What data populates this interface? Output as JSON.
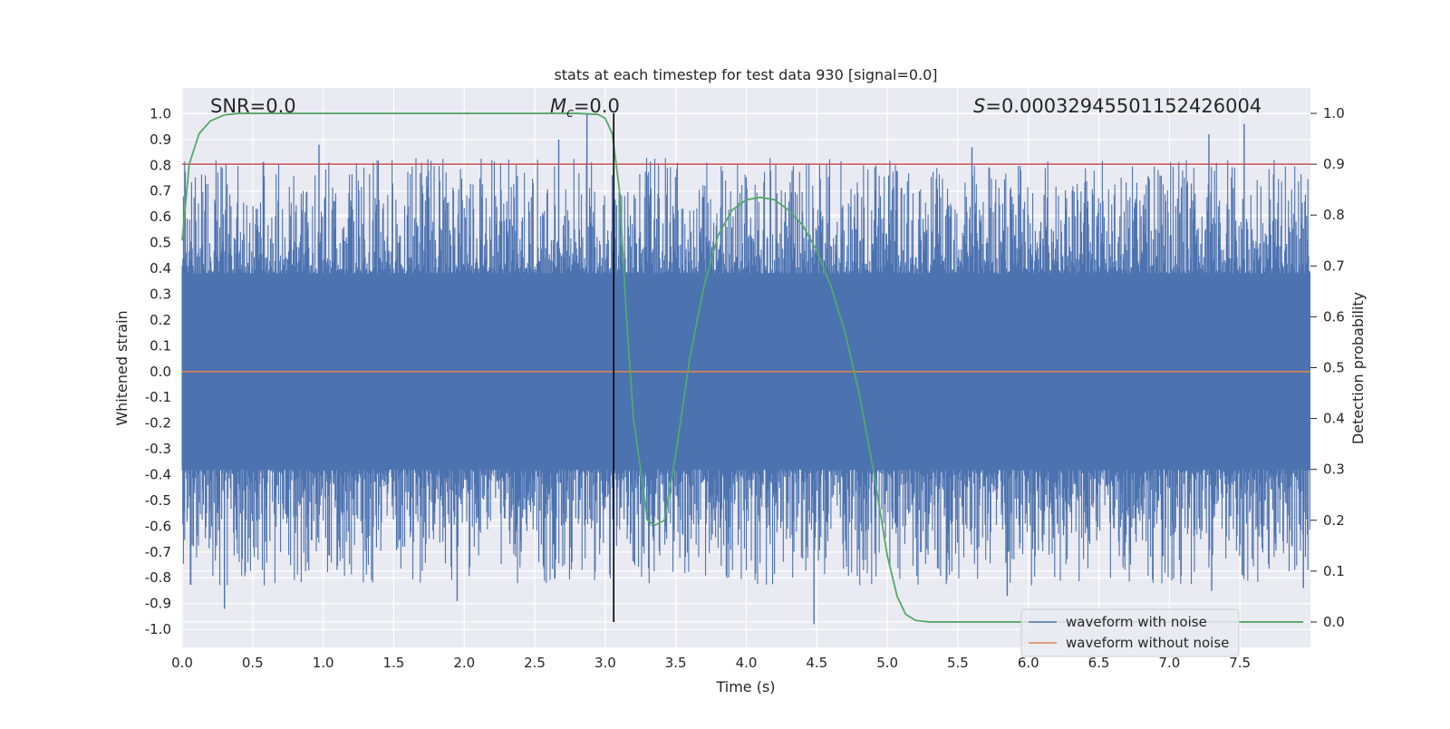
{
  "chart_data": {
    "type": "line",
    "title": "stats at each timestep for test data 930 [signal=0.0]",
    "xlabel": "Time (s)",
    "ylabel": "Whitened strain",
    "y2label": "Detection probability",
    "xlim": [
      0.0,
      8.0
    ],
    "ylim": [
      -1.07,
      1.1
    ],
    "y2lim": [
      -0.05,
      1.05
    ],
    "x_ticks": [
      "0.0",
      "0.5",
      "1.0",
      "1.5",
      "2.0",
      "2.5",
      "3.0",
      "3.5",
      "4.0",
      "4.5",
      "5.0",
      "5.5",
      "6.0",
      "6.5",
      "7.0",
      "7.5"
    ],
    "y_ticks": [
      "1.0",
      "0.9",
      "0.8",
      "0.7",
      "0.6",
      "0.5",
      "0.4",
      "0.3",
      "0.2",
      "0.1",
      "0.0",
      "-0.1",
      "-0.2",
      "-0.3",
      "-0.4",
      "-0.5",
      "-0.6",
      "-0.7",
      "-0.8",
      "-0.9",
      "-1.0"
    ],
    "y2_ticks": [
      "1.0",
      "0.9",
      "0.8",
      "0.7",
      "0.6",
      "0.5",
      "0.4",
      "0.3",
      "0.2",
      "0.1",
      "0.0"
    ],
    "grid": true,
    "legend_position": "lower-right",
    "annotations": {
      "snr": "SNR=0.0",
      "mc_symbol": "M",
      "mc_sub": "c",
      "mc_value": "=0.0",
      "s_symbol": "S",
      "s_value": "=0.00032945501152426004"
    },
    "threshold": {
      "axis": "y2",
      "value": 0.9,
      "color": "#c44e52"
    },
    "marker_time": 3.06,
    "series": [
      {
        "name": "waveform with noise",
        "color": "#4c72b0",
        "axis": "y",
        "kind": "noise",
        "envelope": 0.38,
        "x_range": [
          0.0,
          8.0
        ],
        "peaks": [
          {
            "x": 0.97,
            "y": 0.88
          },
          {
            "x": 2.67,
            "y": 0.9
          },
          {
            "x": 2.87,
            "y": 1.0
          },
          {
            "x": 5.6,
            "y": 0.87
          },
          {
            "x": 7.28,
            "y": 0.92
          },
          {
            "x": 7.53,
            "y": 0.96
          },
          {
            "x": 0.3,
            "y": -0.92
          },
          {
            "x": 1.95,
            "y": -0.89
          },
          {
            "x": 4.48,
            "y": -0.98
          },
          {
            "x": 5.85,
            "y": -0.87
          },
          {
            "x": 7.3,
            "y": -0.85
          },
          {
            "x": 7.95,
            "y": -0.84
          }
        ]
      },
      {
        "name": "waveform without noise",
        "color": "#dd8452",
        "axis": "y",
        "kind": "constant",
        "value": 0.0
      },
      {
        "name": "detection probability",
        "color": "#55a868",
        "axis": "y2",
        "kind": "line",
        "x": [
          0.0,
          0.05,
          0.12,
          0.2,
          0.3,
          0.4,
          0.6,
          1.0,
          1.5,
          2.0,
          2.5,
          2.8,
          2.95,
          3.0,
          3.05,
          3.1,
          3.15,
          3.2,
          3.3,
          3.35,
          3.42,
          3.5,
          3.6,
          3.7,
          3.8,
          3.9,
          4.0,
          4.1,
          4.2,
          4.3,
          4.4,
          4.5,
          4.6,
          4.7,
          4.8,
          4.9,
          5.0,
          5.07,
          5.13,
          5.2,
          5.3,
          5.5,
          6.0,
          7.0,
          7.95
        ],
        "y": [
          0.75,
          0.9,
          0.96,
          0.985,
          0.997,
          1.0,
          1.0,
          1.0,
          1.0,
          1.0,
          1.0,
          1.0,
          0.998,
          0.99,
          0.96,
          0.85,
          0.6,
          0.4,
          0.2,
          0.19,
          0.2,
          0.33,
          0.52,
          0.66,
          0.76,
          0.81,
          0.83,
          0.835,
          0.83,
          0.81,
          0.78,
          0.73,
          0.66,
          0.57,
          0.45,
          0.3,
          0.13,
          0.05,
          0.015,
          0.003,
          0.0,
          0.0,
          0.0,
          0.0,
          0.0
        ]
      }
    ],
    "legend": [
      {
        "label": "waveform with noise",
        "color": "#4c72b0"
      },
      {
        "label": "waveform without noise",
        "color": "#dd8452"
      }
    ]
  }
}
